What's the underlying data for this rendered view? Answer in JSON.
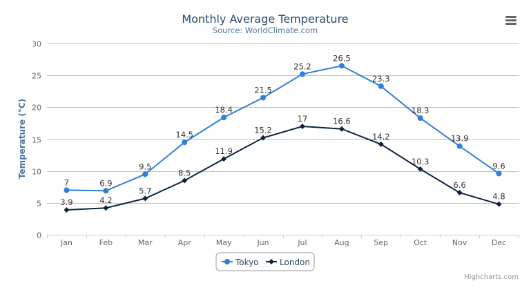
{
  "chart_data": {
    "type": "line",
    "title": "Monthly Average Temperature",
    "subtitle": "Source: WorldClimate.com",
    "xlabel": "",
    "ylabel": "Temperature (°C)",
    "ylim": [
      0,
      30
    ],
    "yticks": [
      0,
      5,
      10,
      15,
      20,
      25,
      30
    ],
    "grid": true,
    "legend": "bottom-center",
    "categories": [
      "Jan",
      "Feb",
      "Mar",
      "Apr",
      "May",
      "Jun",
      "Jul",
      "Aug",
      "Sep",
      "Oct",
      "Nov",
      "Dec"
    ],
    "series": [
      {
        "name": "Tokyo",
        "color": "#2f7ed8",
        "marker": "circle",
        "values": [
          7.0,
          6.9,
          9.5,
          14.5,
          18.4,
          21.5,
          25.2,
          26.5,
          23.3,
          18.3,
          13.9,
          9.6
        ]
      },
      {
        "name": "London",
        "color": "#0d233a",
        "marker": "diamond",
        "values": [
          3.9,
          4.2,
          5.7,
          8.5,
          11.9,
          15.2,
          17.0,
          16.6,
          14.2,
          10.3,
          6.6,
          4.8
        ]
      }
    ]
  },
  "menu_icon": "hamburger-menu-icon",
  "credits": "Highcharts.com"
}
